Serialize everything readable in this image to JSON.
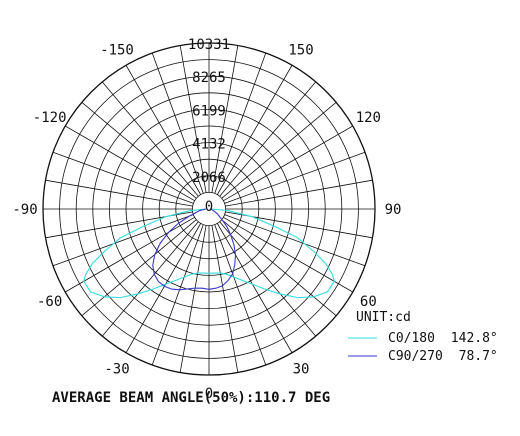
{
  "chart_data": {
    "type": "polar",
    "unit_label": "UNIT:cd",
    "radial_ticks": [
      "0",
      "2066",
      "4132",
      "6199",
      "8265",
      "10331"
    ],
    "radial_max": 10331,
    "angle_labels": [
      "0",
      "30",
      "60",
      "90",
      "120",
      "150",
      "-150",
      "-120",
      "-90",
      "-60",
      "-30"
    ],
    "angle_label_values": [
      0,
      30,
      60,
      90,
      120,
      150,
      -150,
      -120,
      -90,
      -60,
      -30
    ],
    "angular_grid_step_deg": 10,
    "radial_grid_divisions": 10,
    "series": [
      {
        "name": "C0/180",
        "beam_angle": "142.8°",
        "color": "#33dde0",
        "points": [
          [
            -90,
            200
          ],
          [
            -85,
            1200
          ],
          [
            -80,
            2700
          ],
          [
            -75,
            4300
          ],
          [
            -72,
            5800
          ],
          [
            -68,
            7000
          ],
          [
            -65,
            8000
          ],
          [
            -62,
            8700
          ],
          [
            -60,
            9000
          ],
          [
            -55,
            9000
          ],
          [
            -50,
            8500
          ],
          [
            -45,
            7800
          ],
          [
            -40,
            6900
          ],
          [
            -35,
            6100
          ],
          [
            -30,
            5400
          ],
          [
            -25,
            4900
          ],
          [
            -20,
            4500
          ],
          [
            -15,
            4200
          ],
          [
            -10,
            4050
          ],
          [
            -5,
            4000
          ],
          [
            0,
            4000
          ],
          [
            5,
            4000
          ],
          [
            10,
            4050
          ],
          [
            15,
            4200
          ],
          [
            20,
            4500
          ],
          [
            25,
            4900
          ],
          [
            30,
            5400
          ],
          [
            35,
            6100
          ],
          [
            40,
            6900
          ],
          [
            45,
            7800
          ],
          [
            50,
            8500
          ],
          [
            55,
            9000
          ],
          [
            60,
            9000
          ],
          [
            62,
            8700
          ],
          [
            65,
            8000
          ],
          [
            68,
            7000
          ],
          [
            72,
            5800
          ],
          [
            75,
            4300
          ],
          [
            80,
            2700
          ],
          [
            85,
            1200
          ],
          [
            90,
            200
          ]
        ]
      },
      {
        "name": "C90/270",
        "beam_angle": "78.7°",
        "color": "#3a3acc",
        "points": [
          [
            -90,
            200
          ],
          [
            -80,
            600
          ],
          [
            -70,
            1300
          ],
          [
            -65,
            2100
          ],
          [
            -60,
            2900
          ],
          [
            -55,
            3700
          ],
          [
            -50,
            4400
          ],
          [
            -45,
            4950
          ],
          [
            -40,
            5300
          ],
          [
            -35,
            5500
          ],
          [
            -30,
            5550
          ],
          [
            -25,
            5500
          ],
          [
            -20,
            5350
          ],
          [
            -15,
            5150
          ],
          [
            -10,
            5000
          ],
          [
            -5,
            4950
          ],
          [
            0,
            5000
          ],
          [
            5,
            4950
          ],
          [
            10,
            4850
          ],
          [
            15,
            4600
          ],
          [
            20,
            4300
          ],
          [
            25,
            3800
          ],
          [
            30,
            3300
          ],
          [
            35,
            2700
          ],
          [
            40,
            2100
          ],
          [
            45,
            1600
          ],
          [
            50,
            1100
          ],
          [
            60,
            600
          ],
          [
            70,
            300
          ],
          [
            80,
            150
          ],
          [
            90,
            50
          ]
        ]
      }
    ],
    "caption": "AVERAGE BEAM ANGLE(50%):110.7 DEG"
  }
}
